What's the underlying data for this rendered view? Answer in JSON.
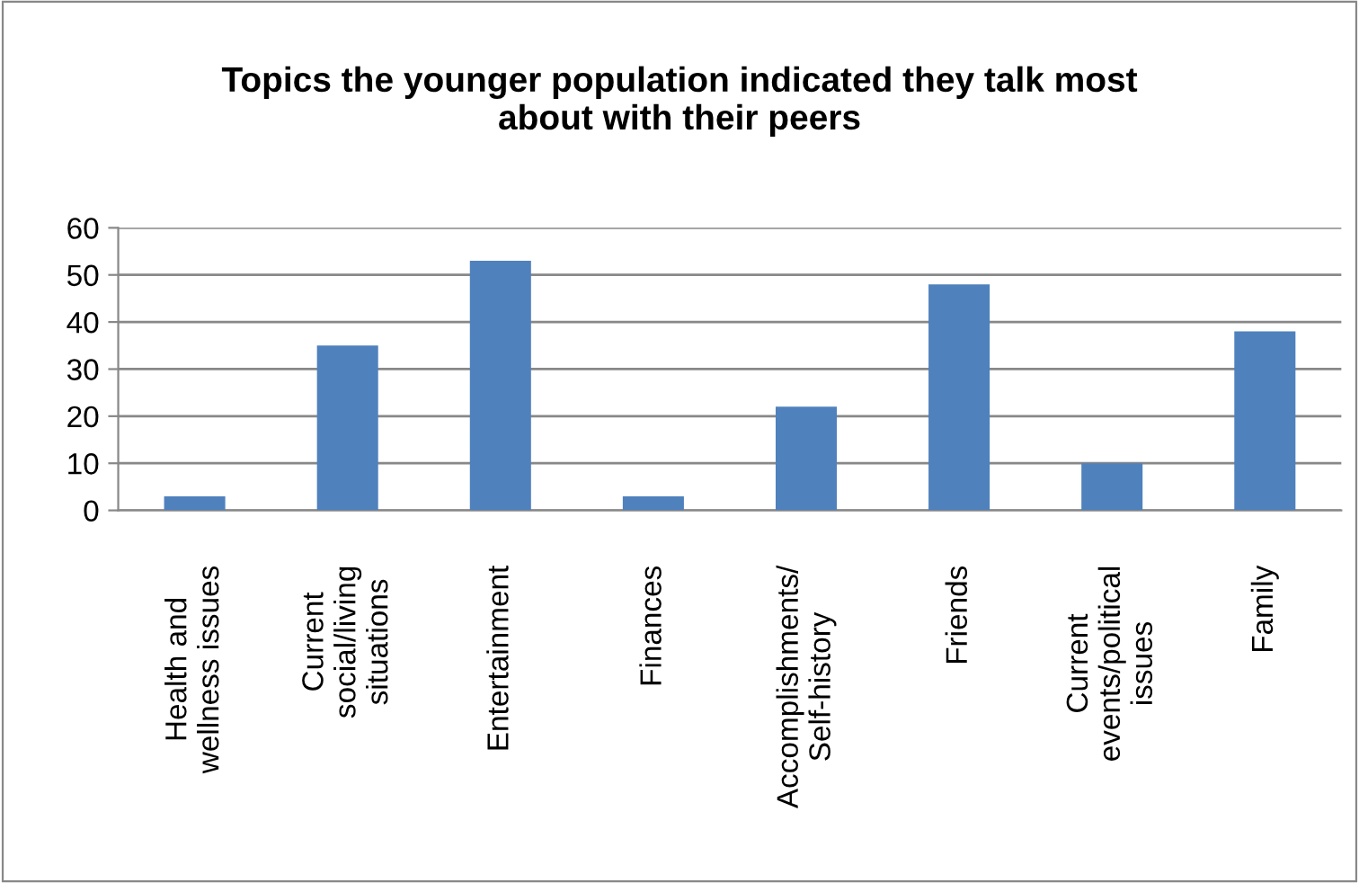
{
  "chart_data": {
    "type": "bar",
    "title": "Topics the younger population indicated they talk most\nabout with their peers",
    "categories": [
      "Health and\nwellness issues",
      "Current\nsocial/living\nsituations",
      "Entertainment",
      "Finances",
      "Accomplishments/\nSelf-history",
      "Friends",
      "Current\nevents/political\nissues",
      "Family"
    ],
    "values": [
      3,
      35,
      53,
      3,
      22,
      48,
      10,
      38
    ],
    "color": "#4f81bd",
    "ylim": [
      0,
      60
    ],
    "yticks": [
      0,
      10,
      20,
      30,
      40,
      50,
      60
    ],
    "grid": "y"
  }
}
